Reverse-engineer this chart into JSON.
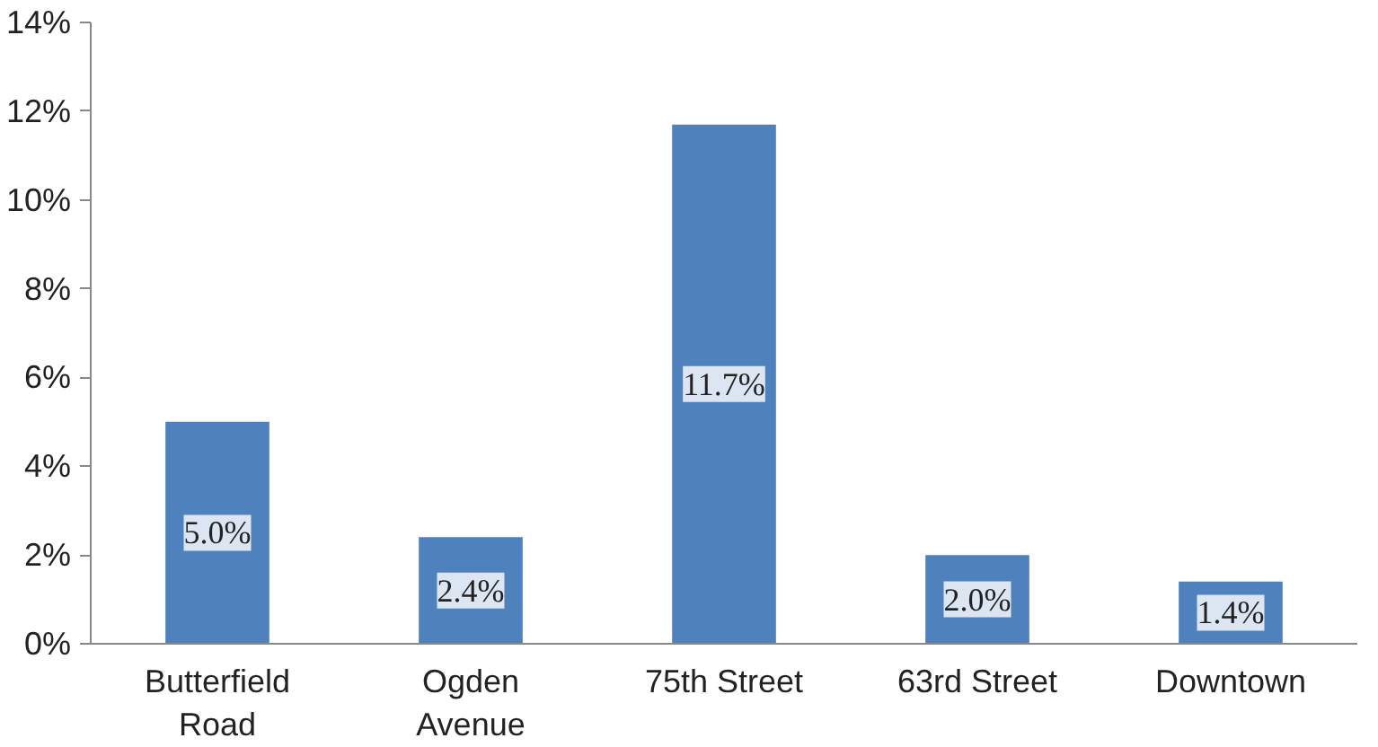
{
  "chart_data": {
    "type": "bar",
    "categories": [
      "Butterfield Road",
      "Ogden Avenue",
      "75th Street",
      "63rd Street",
      "Downtown"
    ],
    "values": [
      5.0,
      2.4,
      11.7,
      2.0,
      1.4
    ],
    "value_labels": [
      "5.0%",
      "2.4%",
      "11.7%",
      "2.0%",
      "1.4%"
    ],
    "color": "#4f81bd",
    "ylim": [
      0,
      14
    ],
    "yticks": [
      {
        "value": 0,
        "label": "0%"
      },
      {
        "value": 2,
        "label": "2%"
      },
      {
        "value": 4,
        "label": "4%"
      },
      {
        "value": 6,
        "label": "6%"
      },
      {
        "value": 8,
        "label": "8%"
      },
      {
        "value": 10,
        "label": "10%"
      },
      {
        "value": 12,
        "label": "12%"
      },
      {
        "value": 14,
        "label": "14%"
      }
    ],
    "grid": false
  }
}
